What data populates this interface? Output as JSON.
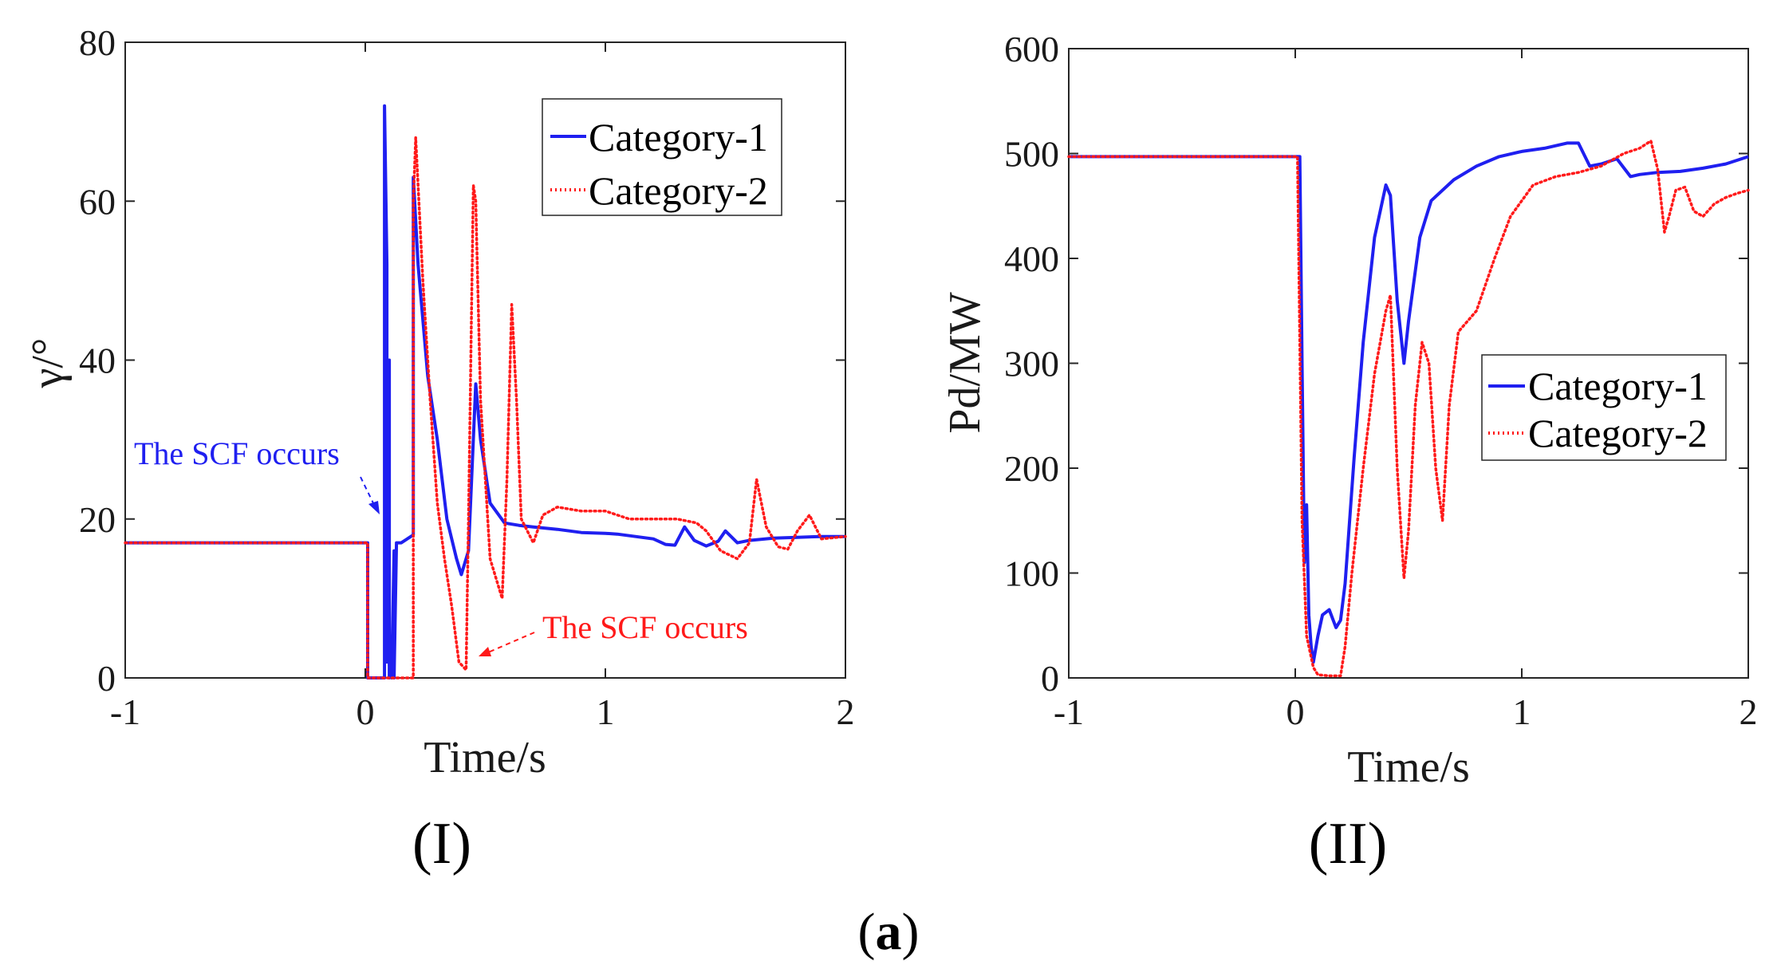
{
  "figure_label": {
    "open": "(",
    "letter": "a",
    "close": ")"
  },
  "chart_data": [
    {
      "type": "line",
      "panel_label": "(I)",
      "xlabel": "Time/s",
      "ylabel": "γ/°",
      "xlim": [
        -1,
        2
      ],
      "ylim": [
        0,
        80
      ],
      "xticks": [
        "-1",
        "0",
        "1",
        "2"
      ],
      "xtick_values": [
        -1,
        0,
        1,
        2
      ],
      "yticks": [
        "0",
        "20",
        "40",
        "60",
        "80"
      ],
      "ytick_values": [
        0,
        20,
        40,
        60,
        80
      ],
      "grid": false,
      "legend_position": "top-right",
      "colors": {
        "series1": "#1f1ff0",
        "series2": "#ff1a1a"
      },
      "series": [
        {
          "name": "Category-1",
          "style": "solid",
          "x": [
            -1,
            0.0,
            0.01,
            0.01,
            0.08,
            0.08,
            0.09,
            0.09,
            0.1,
            0.1,
            0.11,
            0.11,
            0.12,
            0.12,
            0.13,
            0.13,
            0.15,
            0.15,
            0.2,
            0.2,
            0.22,
            0.26,
            0.3,
            0.34,
            0.38,
            0.4,
            0.43,
            0.46,
            0.48,
            0.52,
            0.58,
            0.64,
            0.7,
            0.8,
            0.9,
            1.0,
            1.05,
            1.1,
            1.2,
            1.25,
            1.29,
            1.33,
            1.37,
            1.42,
            1.47,
            1.5,
            1.55,
            1.6,
            1.7,
            1.8,
            1.9,
            2.0
          ],
          "y": [
            17,
            17,
            17,
            0,
            0,
            72,
            52,
            2,
            40,
            0,
            2,
            0,
            16,
            0,
            17,
            17,
            17,
            17,
            18,
            63,
            52,
            38,
            30,
            20,
            15,
            13,
            16,
            37,
            30,
            22,
            19.5,
            19.2,
            19,
            18.7,
            18.3,
            18.2,
            18.1,
            17.9,
            17.5,
            16.8,
            16.7,
            19,
            17.3,
            16.6,
            17.2,
            18.5,
            17,
            17.3,
            17.6,
            17.7,
            17.8,
            17.8
          ]
        },
        {
          "name": "Category-2",
          "style": "dotted",
          "x": [
            -1,
            0.0,
            0.01,
            0.01,
            0.2,
            0.2,
            0.21,
            0.24,
            0.27,
            0.3,
            0.33,
            0.36,
            0.39,
            0.42,
            0.43,
            0.45,
            0.46,
            0.48,
            0.52,
            0.57,
            0.59,
            0.61,
            0.63,
            0.65,
            0.7,
            0.74,
            0.8,
            0.9,
            1.0,
            1.1,
            1.2,
            1.3,
            1.38,
            1.42,
            1.48,
            1.55,
            1.6,
            1.63,
            1.67,
            1.72,
            1.76,
            1.8,
            1.85,
            1.9,
            2.0
          ],
          "y": [
            17,
            17,
            17,
            0,
            0,
            60,
            68,
            50,
            35,
            22,
            15,
            9,
            2,
            1,
            20,
            62,
            60,
            35,
            15,
            10,
            25,
            47,
            35,
            20,
            17,
            20.5,
            21.5,
            21,
            21,
            20,
            20,
            20,
            19.5,
            18.5,
            16,
            15,
            17,
            25,
            19,
            16.5,
            16.2,
            18.5,
            20.5,
            17.5,
            17.8
          ]
        }
      ],
      "annotations": [
        {
          "text": "The SCF occurs",
          "color": "#1f1ff0"
        },
        {
          "text": "The SCF occurs",
          "color": "#ff1a1a"
        }
      ]
    },
    {
      "type": "line",
      "panel_label": "(II)",
      "xlabel": "Time/s",
      "ylabel": "Pd/MW",
      "xlim": [
        -1,
        2
      ],
      "ylim": [
        0,
        600
      ],
      "xticks": [
        "-1",
        "0",
        "1",
        "2"
      ],
      "xtick_values": [
        -1,
        0,
        1,
        2
      ],
      "yticks": [
        "0",
        "100",
        "200",
        "300",
        "400",
        "500",
        "600"
      ],
      "ytick_values": [
        0,
        100,
        200,
        300,
        400,
        500,
        600
      ],
      "grid": false,
      "legend_position": "center-right",
      "colors": {
        "series1": "#1f1ff0",
        "series2": "#ff1a1a"
      },
      "series": [
        {
          "name": "Category-1",
          "style": "solid",
          "x": [
            -1,
            0.02,
            0.03,
            0.04,
            0.05,
            0.06,
            0.07,
            0.08,
            0.1,
            0.12,
            0.15,
            0.18,
            0.2,
            0.22,
            0.26,
            0.3,
            0.35,
            0.4,
            0.42,
            0.45,
            0.48,
            0.5,
            0.55,
            0.6,
            0.7,
            0.8,
            0.9,
            1.0,
            1.1,
            1.2,
            1.25,
            1.3,
            1.35,
            1.42,
            1.48,
            1.52,
            1.6,
            1.7,
            1.8,
            1.9,
            2.0
          ],
          "y": [
            497,
            497,
            300,
            110,
            165,
            60,
            30,
            15,
            40,
            60,
            65,
            48,
            55,
            90,
            210,
            320,
            420,
            470,
            460,
            360,
            300,
            340,
            420,
            455,
            475,
            488,
            497,
            502,
            505,
            510,
            510,
            488,
            490,
            495,
            478,
            480,
            482,
            483,
            486,
            490,
            497
          ]
        },
        {
          "name": "Category-2",
          "style": "dotted",
          "x": [
            -1,
            0.01,
            0.03,
            0.05,
            0.08,
            0.1,
            0.15,
            0.2,
            0.22,
            0.25,
            0.3,
            0.35,
            0.4,
            0.42,
            0.45,
            0.48,
            0.5,
            0.53,
            0.56,
            0.59,
            0.62,
            0.65,
            0.68,
            0.72,
            0.8,
            0.88,
            0.95,
            1.05,
            1.15,
            1.25,
            1.35,
            1.45,
            1.52,
            1.57,
            1.6,
            1.63,
            1.65,
            1.68,
            1.72,
            1.76,
            1.8,
            1.85,
            1.9,
            1.95,
            2.0
          ],
          "y": [
            497,
            497,
            150,
            40,
            10,
            3,
            2,
            2,
            30,
            100,
            200,
            290,
            350,
            365,
            200,
            95,
            140,
            260,
            320,
            300,
            200,
            150,
            260,
            330,
            350,
            400,
            440,
            470,
            478,
            482,
            488,
            500,
            505,
            512,
            485,
            425,
            440,
            465,
            468,
            445,
            440,
            452,
            458,
            462,
            465
          ]
        }
      ]
    }
  ]
}
